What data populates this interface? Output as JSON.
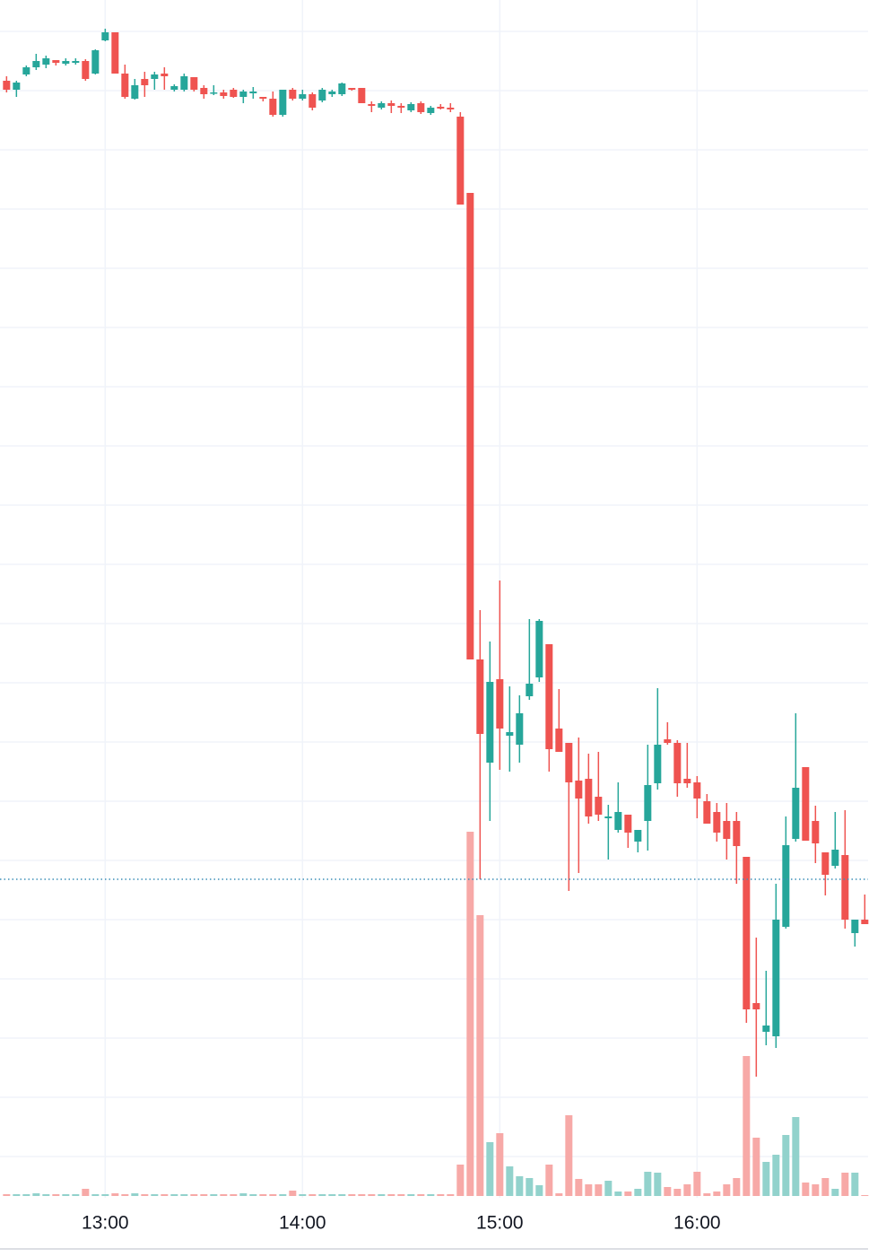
{
  "chart_data": {
    "type": "candlestick",
    "x": [
      "12:30",
      "12:33",
      "12:36",
      "12:39",
      "12:42",
      "12:45",
      "12:48",
      "12:51",
      "12:54",
      "12:57",
      "13:00",
      "13:03",
      "13:06",
      "13:09",
      "13:12",
      "13:15",
      "13:18",
      "13:21",
      "13:24",
      "13:27",
      "13:30",
      "13:33",
      "13:36",
      "13:39",
      "13:42",
      "13:45",
      "13:48",
      "13:51",
      "13:54",
      "13:57",
      "14:00",
      "14:03",
      "14:06",
      "14:09",
      "14:12",
      "14:15",
      "14:18",
      "14:21",
      "14:24",
      "14:27",
      "14:30",
      "14:33",
      "14:36",
      "14:39",
      "14:42",
      "14:45",
      "14:48",
      "14:51",
      "14:54",
      "14:57",
      "15:00",
      "15:03",
      "15:06",
      "15:09",
      "15:12",
      "15:15",
      "15:18",
      "15:21",
      "15:24",
      "15:27",
      "15:30",
      "15:33",
      "15:36",
      "15:39",
      "15:42",
      "15:45",
      "15:48",
      "15:51",
      "15:54",
      "15:57",
      "16:00",
      "16:03",
      "16:06",
      "16:09",
      "16:12",
      "16:15",
      "16:18",
      "16:21",
      "16:24",
      "16:27",
      "16:30",
      "16:33",
      "16:36",
      "16:39",
      "16:42",
      "16:45",
      "16:48",
      "16:51"
    ],
    "open": [
      124,
      123,
      124.7,
      125.5,
      125.8,
      126.3,
      125.9,
      126,
      126.2,
      124.8,
      128.5,
      129.4,
      124.8,
      122,
      124.2,
      124.2,
      124.8,
      123,
      123,
      124.4,
      123.2,
      122.6,
      122.7,
      123,
      122.2,
      122.6,
      122.2,
      122,
      120.2,
      123,
      122,
      122.5,
      121.8,
      122.5,
      122.5,
      123.2,
      123.2,
      121.4,
      121,
      121.5,
      121.2,
      120.7,
      121.5,
      120.4,
      121.1,
      121,
      120,
      111.5,
      59.5,
      48,
      57.3,
      51,
      50,
      55.4,
      57.5,
      61.2,
      51.8,
      50.2,
      46,
      46.2,
      44.2,
      41.8,
      40.5,
      42.2,
      39.2,
      41.5,
      45.7,
      50.6,
      50.2,
      46.2,
      45.8,
      43.7,
      42.5,
      41.5,
      41.5,
      37.5,
      21.2,
      18,
      17.5,
      29.7,
      39.5,
      47.5,
      41.5,
      38,
      36.5,
      37.7,
      29,
      30.5
    ],
    "high": [
      124.5,
      124,
      125.7,
      127,
      126.8,
      126.3,
      126.5,
      126.5,
      126.4,
      127.5,
      129.8,
      129.4,
      125.8,
      124.2,
      125,
      125,
      125.5,
      123.6,
      124.8,
      124.4,
      123.5,
      123.5,
      123,
      123.2,
      123,
      123.3,
      122.2,
      122.8,
      123,
      123.2,
      123,
      122.7,
      123.2,
      123,
      123.8,
      123.2,
      123.2,
      121.7,
      121.7,
      121.8,
      121.5,
      121.6,
      121.7,
      121.2,
      121.4,
      121.5,
      120.5,
      111.5,
      65,
      61.5,
      68.3,
      56.5,
      55.5,
      64,
      64,
      61.2,
      56.2,
      50.2,
      50.8,
      49,
      49.2,
      43.3,
      45.8,
      42.2,
      40.5,
      50,
      56.3,
      52.5,
      50.5,
      50.2,
      46.5,
      44.5,
      43.5,
      43.5,
      42.5,
      37.5,
      28.5,
      24.8,
      34.5,
      42,
      53.5,
      47.5,
      43.2,
      38,
      42.5,
      42.7,
      30.5,
      33.3
    ],
    "low": [
      122.7,
      122.2,
      124.5,
      125.2,
      125.4,
      125.7,
      125.7,
      125.8,
      124,
      124.7,
      128.4,
      124.8,
      122,
      121.9,
      122.2,
      123,
      123,
      122.8,
      122.8,
      122.8,
      122,
      122.4,
      122,
      122.1,
      121.5,
      122,
      121.7,
      120,
      120,
      121.8,
      121.8,
      120.7,
      121.6,
      122.2,
      122.3,
      122.9,
      121.5,
      120.5,
      120.8,
      120.4,
      120.4,
      120.5,
      120.3,
      120.2,
      120.8,
      120.5,
      110.2,
      59.5,
      35,
      41.5,
      47.2,
      47,
      48,
      55,
      57,
      47,
      49.2,
      33.7,
      35.7,
      41.2,
      41.5,
      37.2,
      40.2,
      38.5,
      38,
      38.2,
      45,
      50,
      44.2,
      45.2,
      41.8,
      41.2,
      39.2,
      37.2,
      34.5,
      19,
      13,
      16.5,
      16.2,
      29.5,
      39.2,
      39.3,
      36.8,
      33.2,
      36.2,
      29.5,
      27.5,
      30
    ],
    "close": [
      123,
      123.8,
      125.5,
      126.2,
      126.5,
      126,
      126.2,
      126.2,
      124.2,
      127.4,
      129.4,
      124.8,
      122.2,
      123.5,
      123.5,
      124.7,
      124.5,
      123.4,
      124.5,
      123,
      122.5,
      122.7,
      122.3,
      122.2,
      122.8,
      122.8,
      122,
      120.2,
      123,
      122,
      122.5,
      121,
      123,
      122.8,
      123.7,
      123,
      121.5,
      121.2,
      121.5,
      121.2,
      121,
      121.4,
      120.5,
      121,
      120.9,
      120.8,
      110.2,
      59.5,
      51.2,
      57,
      51.8,
      51.4,
      53.5,
      56.8,
      63.8,
      49.5,
      49.2,
      45.8,
      44,
      42,
      42.2,
      42,
      42.5,
      40.2,
      40.5,
      45.5,
      50,
      50.2,
      45.7,
      45.7,
      44,
      41.2,
      40.2,
      39.5,
      38.7,
      20.5,
      20.5,
      18.7,
      30.5,
      38.8,
      45.2,
      39.3,
      39,
      35.5,
      38.3,
      30.5,
      30.5,
      30
    ],
    "volume": [
      2,
      2,
      2,
      3,
      2,
      2,
      2,
      2,
      8,
      2,
      2,
      3,
      2,
      3,
      2,
      2,
      2,
      2,
      2,
      2,
      2,
      2,
      2,
      2,
      3,
      2,
      2,
      2,
      2,
      6,
      2,
      2,
      2,
      2,
      2,
      2,
      2,
      2,
      2,
      2,
      2,
      2,
      2,
      2,
      2,
      2,
      35,
      406,
      313,
      60,
      70,
      33,
      22,
      20,
      12,
      35,
      3,
      90,
      19,
      13,
      13,
      17,
      5,
      5,
      8,
      27,
      26,
      10,
      8,
      13,
      27,
      3,
      5,
      13,
      20,
      156,
      65,
      38,
      46,
      68,
      88,
      15,
      13,
      20,
      8,
      26,
      26,
      1
    ],
    "up_color": "#26a69a",
    "down_color": "#ef5350",
    "volume_up_color": "#92d2cc",
    "volume_down_color": "#f7a9a7",
    "xlim": [
      "12:28",
      "16:52"
    ],
    "xticks": [
      "13:00",
      "14:00",
      "15:00",
      "16:00"
    ],
    "ylim": [
      0,
      133
    ],
    "volume_ylim": [
      0,
      500
    ],
    "grid_lines": [
      129.5,
      122.9,
      116.3,
      109.7,
      103.1,
      96.5,
      89.9,
      83.3,
      76.7,
      70.1,
      63.5,
      56.9,
      50.3,
      43.7,
      37.1,
      30.5,
      23.9,
      17.3,
      10.7,
      4.1
    ],
    "price_line": 35,
    "price_line_color": "#3d8fb8",
    "grid": true
  }
}
